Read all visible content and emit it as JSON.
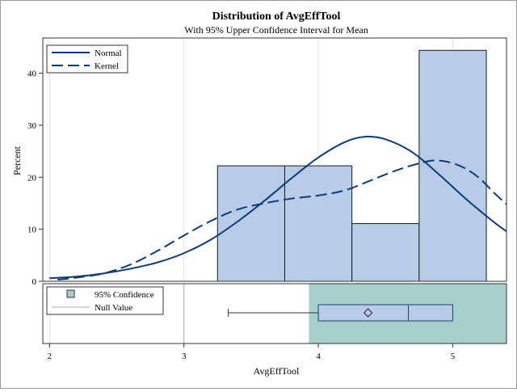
{
  "chart_data": {
    "type": "bar",
    "title": "Distribution of AvgEffTool",
    "subtitle": "With 95% Upper Confidence Interval for Mean",
    "xlabel": "AvgEffTool",
    "ylabel": "Percent",
    "xlim": [
      1.95,
      5.4
    ],
    "ylim": [
      0,
      46
    ],
    "x_ticks": [
      2,
      3,
      4,
      5
    ],
    "y_ticks": [
      0,
      10,
      20,
      30,
      40
    ],
    "histogram": {
      "color": "#b7cce6",
      "edge_color": "#1a1a1a",
      "bins": [
        {
          "x0": 3.25,
          "x1": 3.75,
          "value": 22.2
        },
        {
          "x0": 3.75,
          "x1": 4.25,
          "value": 22.2
        },
        {
          "x0": 4.25,
          "x1": 4.75,
          "value": 11.1
        },
        {
          "x0": 4.75,
          "x1": 5.25,
          "value": 44.4
        }
      ]
    },
    "series": [
      {
        "name": "Normal",
        "style": "solid",
        "color": "#0e3a7a",
        "x": [
          2.0,
          2.2,
          2.4,
          2.6,
          2.8,
          3.0,
          3.2,
          3.4,
          3.6,
          3.8,
          4.0,
          4.2,
          4.35,
          4.5,
          4.7,
          4.9,
          5.1,
          5.3,
          5.4
        ],
        "y": [
          0.6,
          0.9,
          1.5,
          2.4,
          3.6,
          5.4,
          8.0,
          11.5,
          15.5,
          19.8,
          23.8,
          26.8,
          27.8,
          27.3,
          24.8,
          20.5,
          15.8,
          11.5,
          9.6
        ]
      },
      {
        "name": "Kernel",
        "style": "dashed",
        "color": "#0e3a7a",
        "x": [
          2.06,
          2.2,
          2.4,
          2.6,
          2.8,
          3.0,
          3.2,
          3.4,
          3.6,
          3.8,
          4.0,
          4.2,
          4.4,
          4.6,
          4.8,
          4.9,
          5.0,
          5.1,
          5.2,
          5.3,
          5.4
        ],
        "y": [
          0.3,
          0.7,
          1.5,
          3.2,
          5.8,
          8.8,
          11.6,
          13.8,
          15.0,
          15.9,
          16.5,
          17.5,
          19.5,
          21.5,
          23.0,
          23.2,
          22.7,
          21.6,
          19.8,
          17.2,
          14.8
        ]
      }
    ],
    "legend": {
      "placement": "top-left",
      "items": [
        {
          "label": "Normal",
          "style": "solid"
        },
        {
          "label": "Kernel",
          "style": "dashed"
        }
      ]
    },
    "lower_panel": {
      "confidence": {
        "label": "95% Confidence",
        "from": 3.93,
        "to": 5.4,
        "color": "#a9cfcb"
      },
      "null_value": {
        "label": "Null Value",
        "x": 3.0
      },
      "boxplot": {
        "whisker_low": 3.33,
        "q1": 4.0,
        "median": 4.67,
        "q3": 5.0,
        "whisker_high": 5.0,
        "mean": 4.37,
        "color": "#b7cce6"
      }
    },
    "grid": {
      "vertical": true,
      "horizontal": false
    }
  }
}
